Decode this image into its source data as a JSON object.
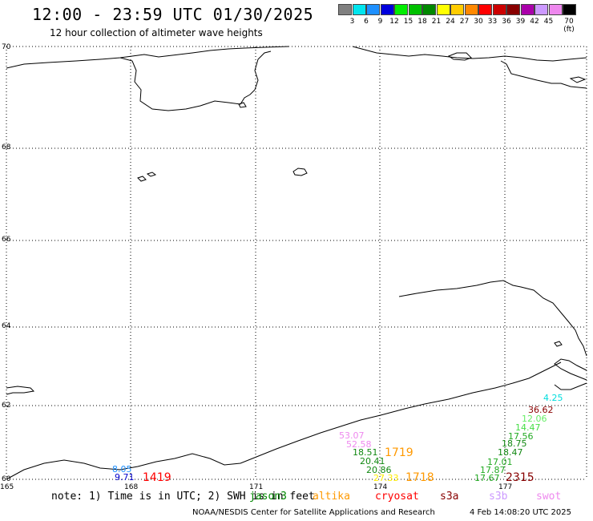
{
  "header": {
    "title": "12:00 - 23:59 UTC 01/30/2025",
    "subtitle": "12 hour collection of altimeter wave heights"
  },
  "color_scale": {
    "labels": [
      "3",
      "6",
      "9",
      "12",
      "15",
      "18",
      "21",
      "24",
      "27",
      "30",
      "33",
      "36",
      "39",
      "42",
      "45",
      "70 (ft)"
    ],
    "colors": [
      "#808080",
      "#00e5ee",
      "#1e90ff",
      "#0000dd",
      "#00ee00",
      "#00c000",
      "#008800",
      "#ffff00",
      "#ffcc00",
      "#ff8800",
      "#ff0000",
      "#cc0000",
      "#880000",
      "#aa00aa",
      "#cc99ff",
      "#ee88ee",
      "#000000"
    ]
  },
  "map": {
    "lat_labels": [
      "70",
      "68",
      "66",
      "64",
      "62",
      "60"
    ],
    "lon_labels": [
      "165",
      "168",
      "171",
      "174",
      "177"
    ]
  },
  "observations": [
    {
      "text": "4.25",
      "color": "#00dddd"
    },
    {
      "text": "36.62",
      "color": "#880000"
    },
    {
      "text": "12.06",
      "color": "#66ee66"
    },
    {
      "text": "14.47",
      "color": "#44dd44"
    },
    {
      "text": "17.56",
      "color": "#22aa22"
    },
    {
      "text": "18.75",
      "color": "#118811"
    },
    {
      "text": "18.47",
      "color": "#118811"
    },
    {
      "text": "17.01",
      "color": "#22aa22"
    },
    {
      "text": "17.87",
      "color": "#22aa22"
    },
    {
      "text": "17.67",
      "color": "#22aa22"
    },
    {
      "text": "2315",
      "color": "#880000"
    },
    {
      "text": "53.07",
      "color": "#ee88ee"
    },
    {
      "text": "52.58",
      "color": "#ee88ee"
    },
    {
      "text": "18.51",
      "color": "#118811"
    },
    {
      "text": "1719",
      "color": "#ff9900"
    },
    {
      "text": "20.41",
      "color": "#118811"
    },
    {
      "text": "20.86",
      "color": "#118811"
    },
    {
      "text": "27.33",
      "color": "#ffee00"
    },
    {
      "text": "1718",
      "color": "#ff9900"
    },
    {
      "text": "8.05",
      "color": "#1e90ff"
    },
    {
      "text": "9.71",
      "color": "#0000cc"
    },
    {
      "text": "1419",
      "color": "#ff0000"
    }
  ],
  "footer": {
    "note": "note: 1) Time is in UTC; 2) SWH is in feet",
    "satellites": [
      {
        "name": "jason3",
        "color": "#008800"
      },
      {
        "name": "altika",
        "color": "#ff9900"
      },
      {
        "name": "cryosat",
        "color": "#ff0000"
      },
      {
        "name": "s3a",
        "color": "#880000"
      },
      {
        "name": "s3b",
        "color": "#cc99ff"
      },
      {
        "name": "swot",
        "color": "#ee88ee"
      }
    ],
    "credit": "NOAA/NESDIS Center for Satellite Applications and Research",
    "timestamp": "4 Feb 14:08:20 UTC 2025"
  }
}
